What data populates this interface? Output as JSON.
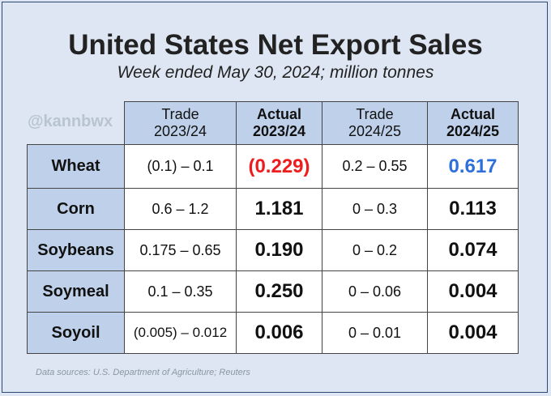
{
  "title": "United States Net Export Sales",
  "subtitle": "Week ended May 30, 2024; million tonnes",
  "watermark": "@kannbwx",
  "footer": "Data sources: U.S. Department of Agriculture; Reuters",
  "colors": {
    "negative_value": "#ee1c1c",
    "highlight_value": "#2e6fdb",
    "header_fill": "#bfd1ea",
    "background": "#dde6f2",
    "border": "#2e4a72"
  },
  "chart_data": {
    "type": "table",
    "columns": [
      {
        "line1": "Trade",
        "line2": "2023/24",
        "bold": false
      },
      {
        "line1": "Actual",
        "line2": "2023/24",
        "bold": true
      },
      {
        "line1": "Trade",
        "line2": "2024/25",
        "bold": false
      },
      {
        "line1": "Actual",
        "line2": "2024/25",
        "bold": true
      }
    ],
    "rows": [
      {
        "label": "Wheat",
        "trade_2324": "(0.1) – 0.1",
        "actual_2324": "(0.229)",
        "trade_2425": "0.2 – 0.55",
        "actual_2425": "0.617"
      },
      {
        "label": "Corn",
        "trade_2324": "0.6 – 1.2",
        "actual_2324": "1.181",
        "trade_2425": "0 – 0.3",
        "actual_2425": "0.113"
      },
      {
        "label": "Soybeans",
        "trade_2324": "0.175 – 0.65",
        "actual_2324": "0.190",
        "trade_2425": "0 – 0.2",
        "actual_2425": "0.074"
      },
      {
        "label": "Soymeal",
        "trade_2324": "0.1 – 0.35",
        "actual_2324": "0.250",
        "trade_2425": "0 – 0.06",
        "actual_2425": "0.004"
      },
      {
        "label": "Soyoil",
        "trade_2324": "(0.005) – 0.012",
        "actual_2324": "0.006",
        "trade_2425": "0 – 0.01",
        "actual_2425": "0.004"
      }
    ]
  }
}
